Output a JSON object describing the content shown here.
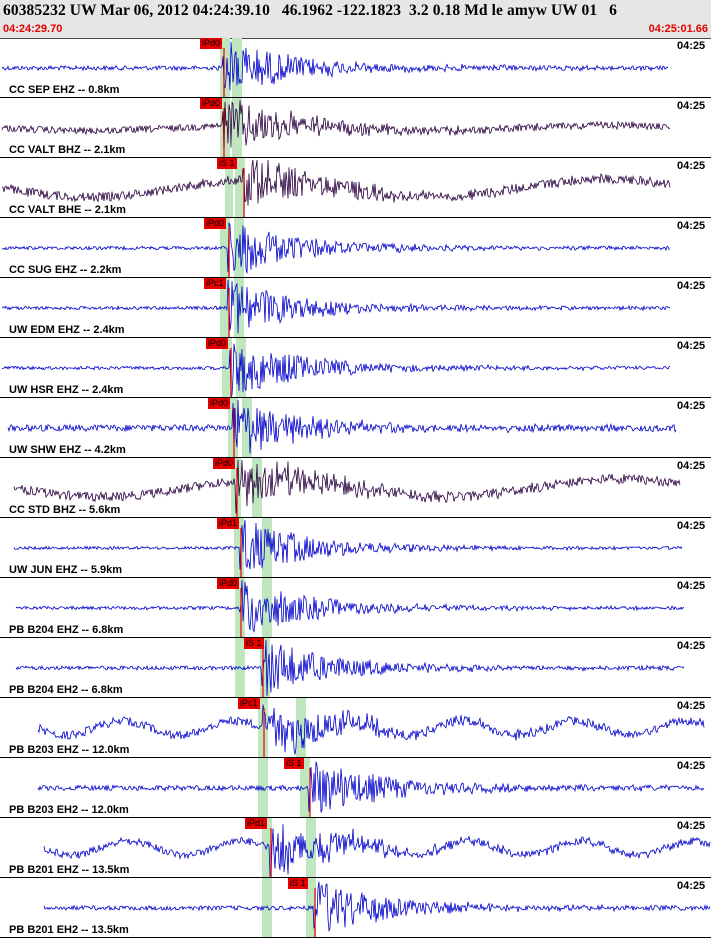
{
  "header": {
    "title": "60385232 UW Mar 06, 2012 04:24:39.10   46.1962 -122.1823  3.2 0.18 Md le amyw UW 01   6",
    "start_time": "04:24:29.70",
    "end_time": "04:25:01.66"
  },
  "colors": {
    "trace_blue": "#0000cc",
    "trace_dark": "#2a0040",
    "pick_red": "#e60000",
    "window_green": "#bfe6bf"
  },
  "traces": [
    {
      "label": "CC SEP EHZ -- 0.8km",
      "time": "04:25",
      "pick": "iPd0",
      "color": "blue",
      "amp": 0.18
    },
    {
      "label": "CC VALT BHZ -- 2.1km",
      "time": "04:25",
      "pick": "iPd0",
      "color": "dark",
      "amp": 0.32
    },
    {
      "label": "CC VALT BHE -- 2.1km",
      "time": "04:25",
      "pick": "iS 1",
      "color": "dark",
      "amp": 0.45
    },
    {
      "label": "CC SUG EHZ -- 2.2km",
      "time": "04:25",
      "pick": "iPd0",
      "color": "blue",
      "amp": 0.12
    },
    {
      "label": "UW EDM EHZ -- 2.4km",
      "time": "04:25",
      "pick": "iPc1",
      "color": "blue",
      "amp": 0.12
    },
    {
      "label": "UW HSR EHZ -- 2.4km",
      "time": "04:25",
      "pick": "iPd0",
      "color": "blue",
      "amp": 0.12
    },
    {
      "label": "UW SHW EHZ -- 4.2km",
      "time": "04:25",
      "pick": "iPd0",
      "color": "blue",
      "amp": 0.3
    },
    {
      "label": "CC STD BHZ -- 5.6km",
      "time": "04:25",
      "pick": "iPd0",
      "color": "dark",
      "amp": 0.45
    },
    {
      "label": "UW JUN EHZ -- 5.9km",
      "time": "04:25",
      "pick": "iPd1",
      "color": "blue",
      "amp": 0.1
    },
    {
      "label": "PB B204 EHZ -- 6.8km",
      "time": "04:25",
      "pick": "iPd0",
      "color": "blue",
      "amp": 0.12
    },
    {
      "label": "PB B204 EH2 -- 6.8km",
      "time": "04:25",
      "pick": "iS 1",
      "color": "blue",
      "amp": 0.15
    },
    {
      "label": "PB B203 EHZ -- 12.0km",
      "time": "04:25",
      "pick": "iPc1",
      "color": "blue",
      "amp": 0.4
    },
    {
      "label": "PB B203 EH2 -- 12.0km",
      "time": "04:25",
      "pick": "iS 1",
      "color": "blue",
      "amp": 0.22
    },
    {
      "label": "PB B201 EHZ -- 13.5km",
      "time": "04:25",
      "pick": "iPd1",
      "color": "blue",
      "amp": 0.35
    },
    {
      "label": "PB B201 EH2 -- 13.5km",
      "time": "04:25",
      "pick": "iS 1",
      "color": "blue",
      "amp": 0.18
    }
  ]
}
